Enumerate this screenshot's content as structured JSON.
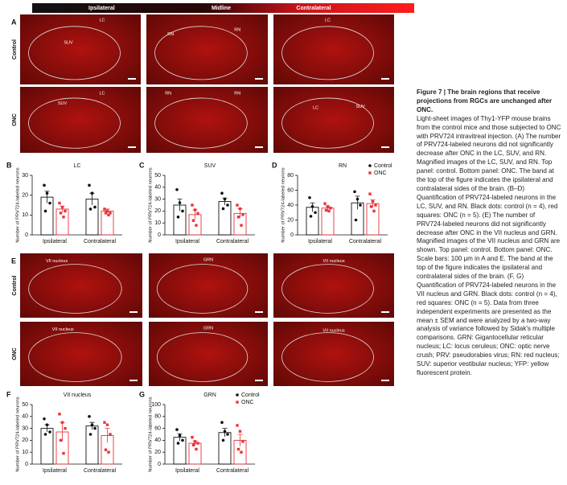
{
  "panel_a": {
    "label": "A",
    "band": [
      "Ipsilateral",
      "Midline",
      "Contralateral"
    ],
    "rows": [
      "Control",
      "ONC"
    ],
    "regions": [
      [
        [
          "SUV",
          "LC"
        ],
        [
          "RN",
          "RN"
        ],
        [
          "LC"
        ]
      ],
      [
        [
          "SUV",
          "LC"
        ],
        [
          "RN",
          "RN"
        ],
        [
          "LC",
          "SUV"
        ]
      ]
    ]
  },
  "panel_e": {
    "label": "E",
    "rows": [
      "Control",
      "ONC"
    ],
    "regions": [
      [
        [
          "VII nucleus"
        ],
        [
          "GRN"
        ],
        [
          "VII nucleus"
        ]
      ],
      [
        [
          "VII nucleus"
        ],
        [
          "GRN"
        ],
        [
          "VII nucleus"
        ]
      ]
    ]
  },
  "chart_data": [
    {
      "type": "bar",
      "panel": "B",
      "title": "LC",
      "y_label": "Number of PRV724-labeled neurons",
      "categories": [
        "Ipsilateral",
        "Contralateral"
      ],
      "ylim": [
        0,
        30
      ],
      "yticks": [
        0,
        10,
        20,
        30
      ],
      "legend": false,
      "series": [
        {
          "name": "Control",
          "color": "#111111",
          "values": [
            19,
            18
          ],
          "errors": [
            3,
            3
          ],
          "points": [
            [
              25,
              21,
              16,
              12
            ],
            [
              25,
              21,
              14,
              13
            ]
          ]
        },
        {
          "name": "ONC",
          "color": "#e8343a",
          "values": [
            13,
            12
          ],
          "errors": [
            1.5,
            1
          ],
          "points": [
            [
              16,
              14,
              12,
              11,
              9
            ],
            [
              13,
              12,
              11,
              11,
              10
            ]
          ]
        }
      ]
    },
    {
      "type": "bar",
      "panel": "C",
      "title": "SUV",
      "y_label": "Number of PRV724-labeled neurons",
      "categories": [
        "Ipsilateral",
        "Contralateral"
      ],
      "ylim": [
        0,
        50
      ],
      "yticks": [
        0,
        10,
        20,
        30,
        40,
        50
      ],
      "legend": false,
      "series": [
        {
          "name": "Control",
          "color": "#111111",
          "values": [
            25,
            28
          ],
          "errors": [
            5,
            3
          ],
          "points": [
            [
              38,
              27,
              20,
              15
            ],
            [
              35,
              30,
              25,
              22
            ]
          ]
        },
        {
          "name": "ONC",
          "color": "#e8343a",
          "values": [
            17,
            18
          ],
          "errors": [
            4,
            4
          ],
          "points": [
            [
              25,
              21,
              18,
              12,
              8
            ],
            [
              25,
              22,
              17,
              15,
              8
            ]
          ]
        }
      ]
    },
    {
      "type": "bar",
      "panel": "D",
      "title": "RN",
      "y_label": "Number of PRV724-labeled neurons",
      "categories": [
        "Ipsilateral",
        "Contralateral"
      ],
      "ylim": [
        0,
        80
      ],
      "yticks": [
        0,
        20,
        40,
        60,
        80
      ],
      "legend": true,
      "series": [
        {
          "name": "Control",
          "color": "#111111",
          "values": [
            37,
            43
          ],
          "errors": [
            6,
            9
          ],
          "points": [
            [
              50,
              38,
              30,
              25
            ],
            [
              58,
              48,
              40,
              20
            ]
          ]
        },
        {
          "name": "ONC",
          "color": "#e8343a",
          "values": [
            36,
            42
          ],
          "errors": [
            3,
            5
          ],
          "points": [
            [
              42,
              38,
              36,
              33,
              32
            ],
            [
              55,
              45,
              40,
              38,
              32
            ]
          ]
        }
      ]
    },
    {
      "type": "bar",
      "panel": "F",
      "title": "VII nucleus",
      "y_label": "Number of PRV724-labeled neurons",
      "categories": [
        "Ipsilateral",
        "Contralateral"
      ],
      "ylim": [
        0,
        50
      ],
      "yticks": [
        0,
        10,
        20,
        30,
        40,
        50
      ],
      "legend": false,
      "series": [
        {
          "name": "Control",
          "color": "#111111",
          "values": [
            30,
            32
          ],
          "errors": [
            3,
            3
          ],
          "points": [
            [
              38,
              33,
              27,
              25
            ],
            [
              40,
              33,
              30,
              25
            ]
          ]
        },
        {
          "name": "ONC",
          "color": "#e8343a",
          "values": [
            27,
            24
          ],
          "errors": [
            8,
            6
          ],
          "points": [
            [
              42,
              35,
              30,
              20,
              9
            ],
            [
              35,
              33,
              25,
              12,
              10
            ]
          ]
        }
      ]
    },
    {
      "type": "bar",
      "panel": "G",
      "title": "GRN",
      "y_label": "Number of PRV724-labeled neurons",
      "categories": [
        "Ipsilateral",
        "Contralateral"
      ],
      "ylim": [
        0,
        100
      ],
      "yticks": [
        0,
        20,
        40,
        60,
        80,
        100
      ],
      "legend": true,
      "series": [
        {
          "name": "Control",
          "color": "#111111",
          "values": [
            45,
            53
          ],
          "errors": [
            6,
            7
          ],
          "points": [
            [
              58,
              48,
              40,
              35
            ],
            [
              70,
              55,
              50,
              40
            ]
          ]
        },
        {
          "name": "ONC",
          "color": "#e8343a",
          "values": [
            35,
            40
          ],
          "errors": [
            4,
            10
          ],
          "points": [
            [
              45,
              38,
              35,
              32,
              25
            ],
            [
              65,
              55,
              38,
              25,
              20
            ]
          ]
        }
      ]
    }
  ],
  "caption": {
    "title": "Figure 7 | The brain regions that receive projections from RGCs are unchanged after ONC.",
    "body": "Light-sheet images of Thy1-YFP mouse brains from the control mice and those subjected to ONC with PRV724 intravitreal injection. (A) The number of PRV724-labeled neurons did not significantly decrease after ONC in the LC, SUV, and RN. Magnified images of the LC, SUV, and RN. Top panel: control. Bottom panel: ONC. The band at the top of the figure indicates the ipsilateral and contralateral sides of the brain. (B–D) Quantification of PRV724-labeled neurons in the LC, SUV, and RN. Black dots: control (n = 4), red squares: ONC (n = 5). (E) The number of PRV724-labeled neurons did not significantly decrease after ONC in the VII nucleus and GRN. Magnified images of the VII nucleus and GRN are shown. Top panel: control. Bottom panel: ONC. Scale bars: 100 μm in A and E. The band at the top of the figure indicates the ipsilateral and contralateral sides of the brain. (F, G) Quantification of PRV724-labeled neurons in the VII nucleus and GRN. Black dots: control (n = 4), red squares: ONC (n = 5). Data from three independent experiments are presented as the mean ± SEM and were analyzed by a two-way analysis of variance followed by Sidak's multiple comparisons. GRN: Gigantocellular reticular nucleus; LC: locus ceruleus; ONC: optic nerve crush; PRV: pseudorabies virus; RN: red nucleus; SUV: superior vestibular nucleus; YFP: yellow fluorescent protein."
  }
}
